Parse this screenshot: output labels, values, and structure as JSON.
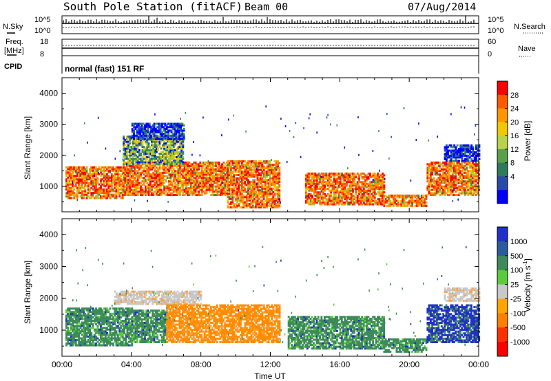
{
  "header": {
    "station": "South Pole Station (fitACF)",
    "beam": "Beam 00",
    "date": "07/Aug/2014"
  },
  "status_panels": {
    "nsky": {
      "label": "N.Sky",
      "ticks": [
        "10^5",
        "10^0"
      ]
    },
    "nsearch": {
      "label": "N.Search",
      "ticks": [
        "10^5",
        "10^0"
      ]
    },
    "freq": {
      "label_line1": "Freq.",
      "label_line2": "[MHz]",
      "ticks": [
        "18",
        "8"
      ]
    },
    "nave": {
      "label": "Nave",
      "ticks": [
        "60",
        "0"
      ]
    },
    "cpid": {
      "label": "CPID",
      "text": "normal (fast) 151 RF"
    }
  },
  "chart_data": [
    {
      "type": "heatmap",
      "panel": "power",
      "ylabel": "Slant Range [km]",
      "xlabel": "",
      "xlim": [
        "00:00",
        "24:00"
      ],
      "ylim": [
        180,
        4500
      ],
      "xtick_labels": [
        "00:00",
        "04:00",
        "08:00",
        "12:00",
        "16:00",
        "20:00",
        "00:00"
      ],
      "ytick_labels": [
        "1000",
        "2000",
        "3000",
        "4000"
      ],
      "ytick_values": [
        1000,
        2000,
        3000,
        4000
      ],
      "colorbar": {
        "label": "Power [dB]",
        "ticks": [
          "28",
          "24",
          "20",
          "16",
          "12",
          "8",
          "4"
        ],
        "colors": [
          "#ff0000",
          "#ff5a00",
          "#ff9600",
          "#f0c800",
          "#b8d24a",
          "#5aa04a",
          "#2f7a5a",
          "#2a4aa8",
          "#0000ff"
        ]
      },
      "regions": [
        {
          "t0": 0.2,
          "t1": 3.5,
          "r0": 600,
          "r1": 1600,
          "level": "high"
        },
        {
          "t0": 3.5,
          "t1": 9.5,
          "r0": 700,
          "r1": 1800,
          "level": "high"
        },
        {
          "t0": 3.5,
          "t1": 7.0,
          "r0": 1700,
          "r1": 2600,
          "level": "mid"
        },
        {
          "t0": 4.0,
          "t1": 7.0,
          "r0": 2500,
          "r1": 3000,
          "level": "low"
        },
        {
          "t0": 9.5,
          "t1": 12.5,
          "r0": 300,
          "r1": 1800,
          "level": "high"
        },
        {
          "t0": 14.0,
          "t1": 18.5,
          "r0": 400,
          "r1": 1400,
          "level": "high"
        },
        {
          "t0": 18.5,
          "t1": 21.0,
          "r0": 350,
          "r1": 700,
          "level": "high"
        },
        {
          "t0": 21.0,
          "t1": 24.0,
          "r0": 700,
          "r1": 1800,
          "level": "high"
        },
        {
          "t0": 22.0,
          "t1": 24.0,
          "r0": 1800,
          "r1": 2300,
          "level": "low"
        }
      ]
    },
    {
      "type": "heatmap",
      "panel": "velocity",
      "ylabel": "Slant Range [km]",
      "xlabel": "Time UT",
      "xlim": [
        "00:00",
        "24:00"
      ],
      "ylim": [
        180,
        4500
      ],
      "xtick_labels": [
        "00:00",
        "04:00",
        "08:00",
        "12:00",
        "16:00",
        "20:00",
        "00:00"
      ],
      "ytick_labels": [
        "1000",
        "2000",
        "3000",
        "4000"
      ],
      "ytick_values": [
        1000,
        2000,
        3000,
        4000
      ],
      "colorbar": {
        "label": "Velocity [m s^-1]",
        "ticks": [
          "1000",
          "500",
          "100",
          "25",
          "-25",
          "-100",
          "-500",
          "-1000"
        ],
        "colors": [
          "#2030c8",
          "#2a5aa0",
          "#3d8a5a",
          "#5acc3c",
          "#c8c8c8",
          "#ffa500",
          "#ff7f00",
          "#ff3000",
          "#ff0000"
        ]
      },
      "regions": [
        {
          "t0": 0.2,
          "t1": 4.0,
          "r0": 500,
          "r1": 1700,
          "level": "pos"
        },
        {
          "t0": 3.0,
          "t1": 8.0,
          "r0": 1800,
          "r1": 2200,
          "level": "zero"
        },
        {
          "t0": 4.0,
          "t1": 6.0,
          "r0": 600,
          "r1": 1600,
          "level": "pos"
        },
        {
          "t0": 6.0,
          "t1": 12.5,
          "r0": 600,
          "r1": 1800,
          "level": "neg"
        },
        {
          "t0": 13.0,
          "t1": 18.5,
          "r0": 400,
          "r1": 1400,
          "level": "pos"
        },
        {
          "t0": 18.5,
          "t1": 21.0,
          "r0": 300,
          "r1": 700,
          "level": "pos"
        },
        {
          "t0": 21.0,
          "t1": 24.0,
          "r0": 600,
          "r1": 1800,
          "level": "fast"
        },
        {
          "t0": 22.0,
          "t1": 24.0,
          "r0": 1900,
          "r1": 2300,
          "level": "zero"
        }
      ]
    }
  ],
  "colors": {
    "power": [
      "#0000ff",
      "#1e50c8",
      "#3c8c50",
      "#9ccc3c",
      "#f0c800",
      "#ff9600",
      "#ff5a00",
      "#ff0000"
    ],
    "velocity": {
      "pos": "#3d8a5a",
      "fast": "#2030c8",
      "zero": "#c8c8c8",
      "neg": "#ff8c00",
      "green": "#5acc3c",
      "orange": "#ffa040"
    }
  }
}
